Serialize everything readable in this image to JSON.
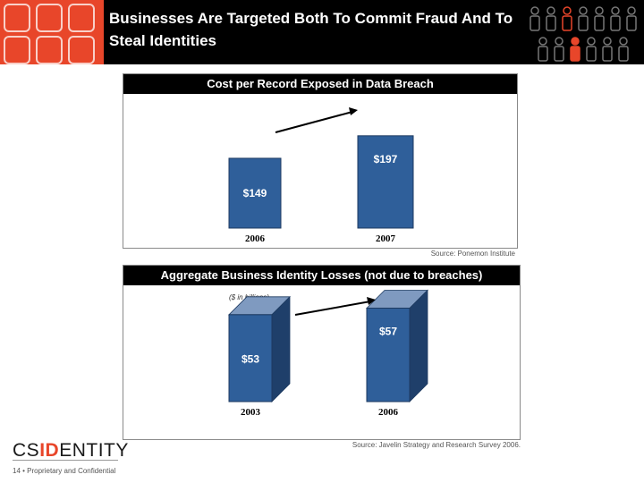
{
  "slide": {
    "title": "Businesses Are Targeted Both To Commit Fraud And To Steal Identities",
    "page_number": "14",
    "footer_text": "Proprietary and Confidential",
    "logo": {
      "part1": "CS",
      "part2": "ID",
      "part3": "ENTITY"
    }
  },
  "colors": {
    "accent": "#e8462a",
    "bar": "#2f5f9a",
    "header": "#000000"
  },
  "chart_data": [
    {
      "type": "bar",
      "title": "Cost per Record Exposed in Data Breach",
      "categories": [
        "2006",
        "2007"
      ],
      "values": [
        149,
        197
      ],
      "value_labels": [
        "$149",
        "$197"
      ],
      "ylim": [
        0,
        210
      ],
      "source": "Source:  Ponemon Institute",
      "trend_arrow": true
    },
    {
      "type": "bar",
      "title": "Aggregate Business Identity Losses (not due to breaches)",
      "subtitle": "($ in billions)",
      "categories": [
        "2003",
        "2006"
      ],
      "values": [
        53,
        57
      ],
      "value_labels": [
        "$53",
        "$57"
      ],
      "ylim": [
        0,
        60
      ],
      "source": "Source:  Javelin Strategy and Research Survey 2006.",
      "trend_arrow": true
    }
  ]
}
